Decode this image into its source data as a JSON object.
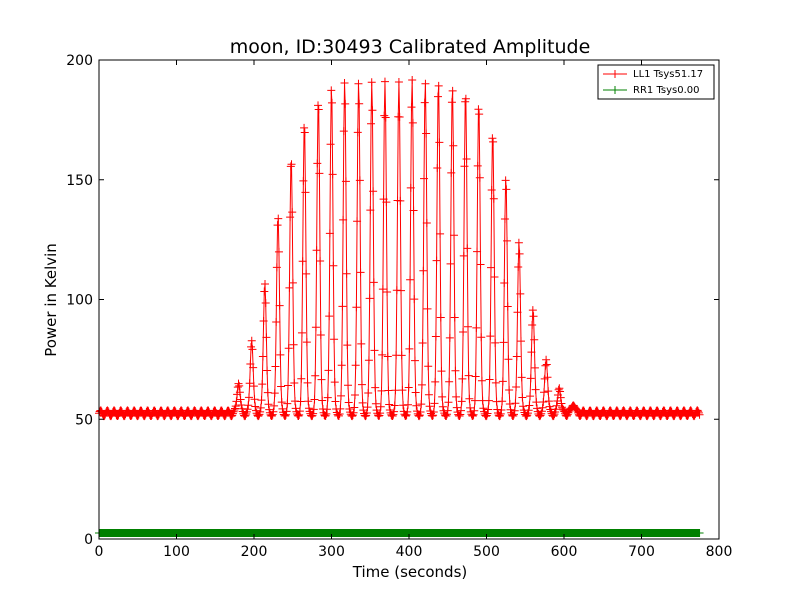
{
  "chart_data": {
    "type": "line",
    "title": "moon, ID:30493 Calibrated Amplitude",
    "xlabel": "Time (seconds)",
    "ylabel": "Power in Kelvin",
    "xlim": [
      0,
      800
    ],
    "ylim": [
      0,
      200
    ],
    "xticks": [
      "0",
      "100",
      "200",
      "300",
      "400",
      "500",
      "600",
      "700",
      "800"
    ],
    "yticks": [
      "0",
      "50",
      "100",
      "150",
      "200"
    ],
    "grid": false,
    "legend_position": "top-right",
    "scan": {
      "baseline": 52.5,
      "ripple": 1.2,
      "period_seconds": 17.3,
      "t_start": 0,
      "t_end": 775,
      "peak_times": [
        180,
        197,
        214,
        231,
        248,
        265,
        283,
        300,
        317,
        335,
        352,
        369,
        387,
        404,
        421,
        438,
        456,
        473,
        490,
        508,
        525,
        542,
        560,
        577,
        594,
        612
      ],
      "peak_values": [
        66,
        84,
        108,
        136,
        160,
        175,
        185,
        190,
        192,
        192,
        192,
        192,
        192,
        193,
        192,
        192,
        190,
        188,
        183,
        171,
        152,
        125,
        97,
        76,
        64,
        57
      ]
    },
    "series": [
      {
        "name": "LL1 Tsys51.17",
        "color": "#ff0000",
        "marker": "+",
        "level": 52.5
      },
      {
        "name": "RR1 Tsys0.00",
        "color": "#008000",
        "marker": "+",
        "level": 2.5
      }
    ]
  }
}
